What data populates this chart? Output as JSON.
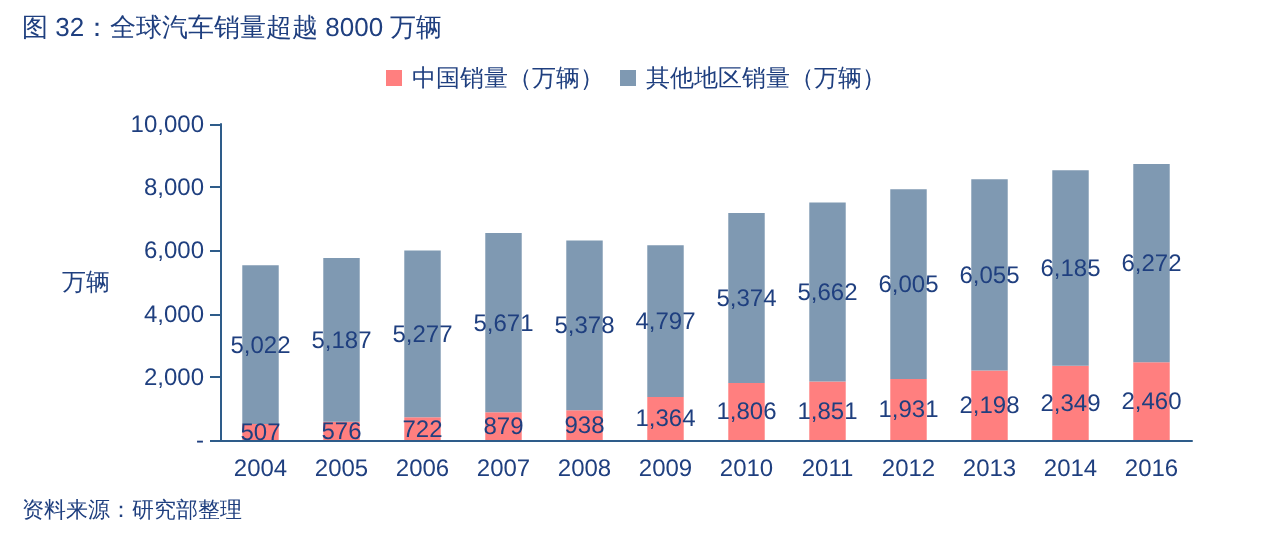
{
  "chart_data": {
    "type": "bar",
    "stacked": true,
    "title": "图 32：全球汽车销量超越 8000 万辆",
    "ylabel": "万辆",
    "categories": [
      "2004",
      "2005",
      "2006",
      "2007",
      "2008",
      "2009",
      "2010",
      "2011",
      "2012",
      "2013",
      "2014",
      "2016"
    ],
    "series": [
      {
        "name": "中国销量（万辆）",
        "color": "#ff7f7f",
        "values": [
          507,
          576,
          722,
          879,
          938,
          1364,
          1806,
          1851,
          1931,
          2198,
          2349,
          2460
        ],
        "value_labels": [
          "507",
          "576",
          "722",
          "879",
          "938",
          "1,364",
          "1,806",
          "1,851",
          "1,931",
          "2,198",
          "2,349",
          "2,460"
        ]
      },
      {
        "name": "其他地区销量（万辆）",
        "color": "#7f99b2",
        "values": [
          5022,
          5187,
          5277,
          5671,
          5378,
          4797,
          5374,
          5662,
          6005,
          6055,
          6185,
          6272
        ],
        "value_labels": [
          "5,022",
          "5,187",
          "5,277",
          "5,671",
          "5,378",
          "4,797",
          "5,374",
          "5,662",
          "6,005",
          "6,055",
          "6,185",
          "6,272"
        ]
      }
    ],
    "ylim": [
      0,
      10000
    ],
    "yticks": [
      {
        "value": 0,
        "label": "-"
      },
      {
        "value": 2000,
        "label": "2,000"
      },
      {
        "value": 4000,
        "label": "4,000"
      },
      {
        "value": 6000,
        "label": "6,000"
      },
      {
        "value": 8000,
        "label": "8,000"
      },
      {
        "value": 10000,
        "label": "10,000"
      }
    ],
    "legend": "top",
    "grid": false,
    "annotations": [
      "资料来源：研究部整理"
    ]
  }
}
